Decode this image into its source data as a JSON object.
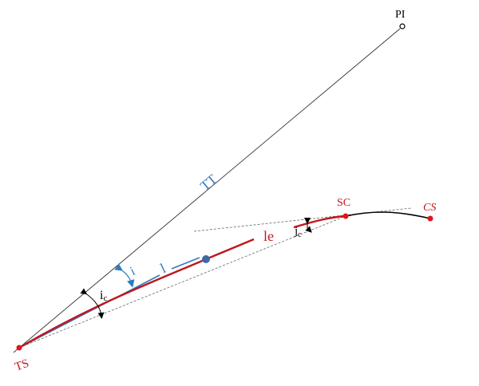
{
  "labels": {
    "pi": "PI",
    "tt": "TT",
    "sc": "SC",
    "cs": "CS",
    "le": "le",
    "jc": "j",
    "jc_sub": "c",
    "l": "l",
    "i": "i",
    "ic": "i",
    "ic_sub": "c",
    "ts": "TS"
  },
  "colors": {
    "spiral": "#c0161c",
    "tangent": "#333333",
    "blue": "#2e7bbf",
    "point": "#e3131b",
    "blue_point": "#3d6aa6"
  }
}
